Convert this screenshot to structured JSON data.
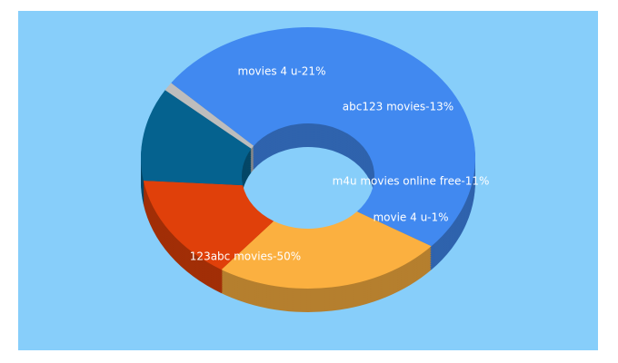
{
  "chart_data": {
    "type": "donut3d",
    "values": [
      50,
      21,
      13,
      11,
      1
    ],
    "value_labels": [
      "123abc movies-50%",
      "movies 4 u-21%",
      "abc123 movies-13%",
      "m4u movies online free-11%",
      "movie 4 u-1%"
    ],
    "colors": [
      "#4189f0",
      "#fbb040",
      "#e0400a",
      "#05628f",
      "#bdbdbd"
    ]
  }
}
